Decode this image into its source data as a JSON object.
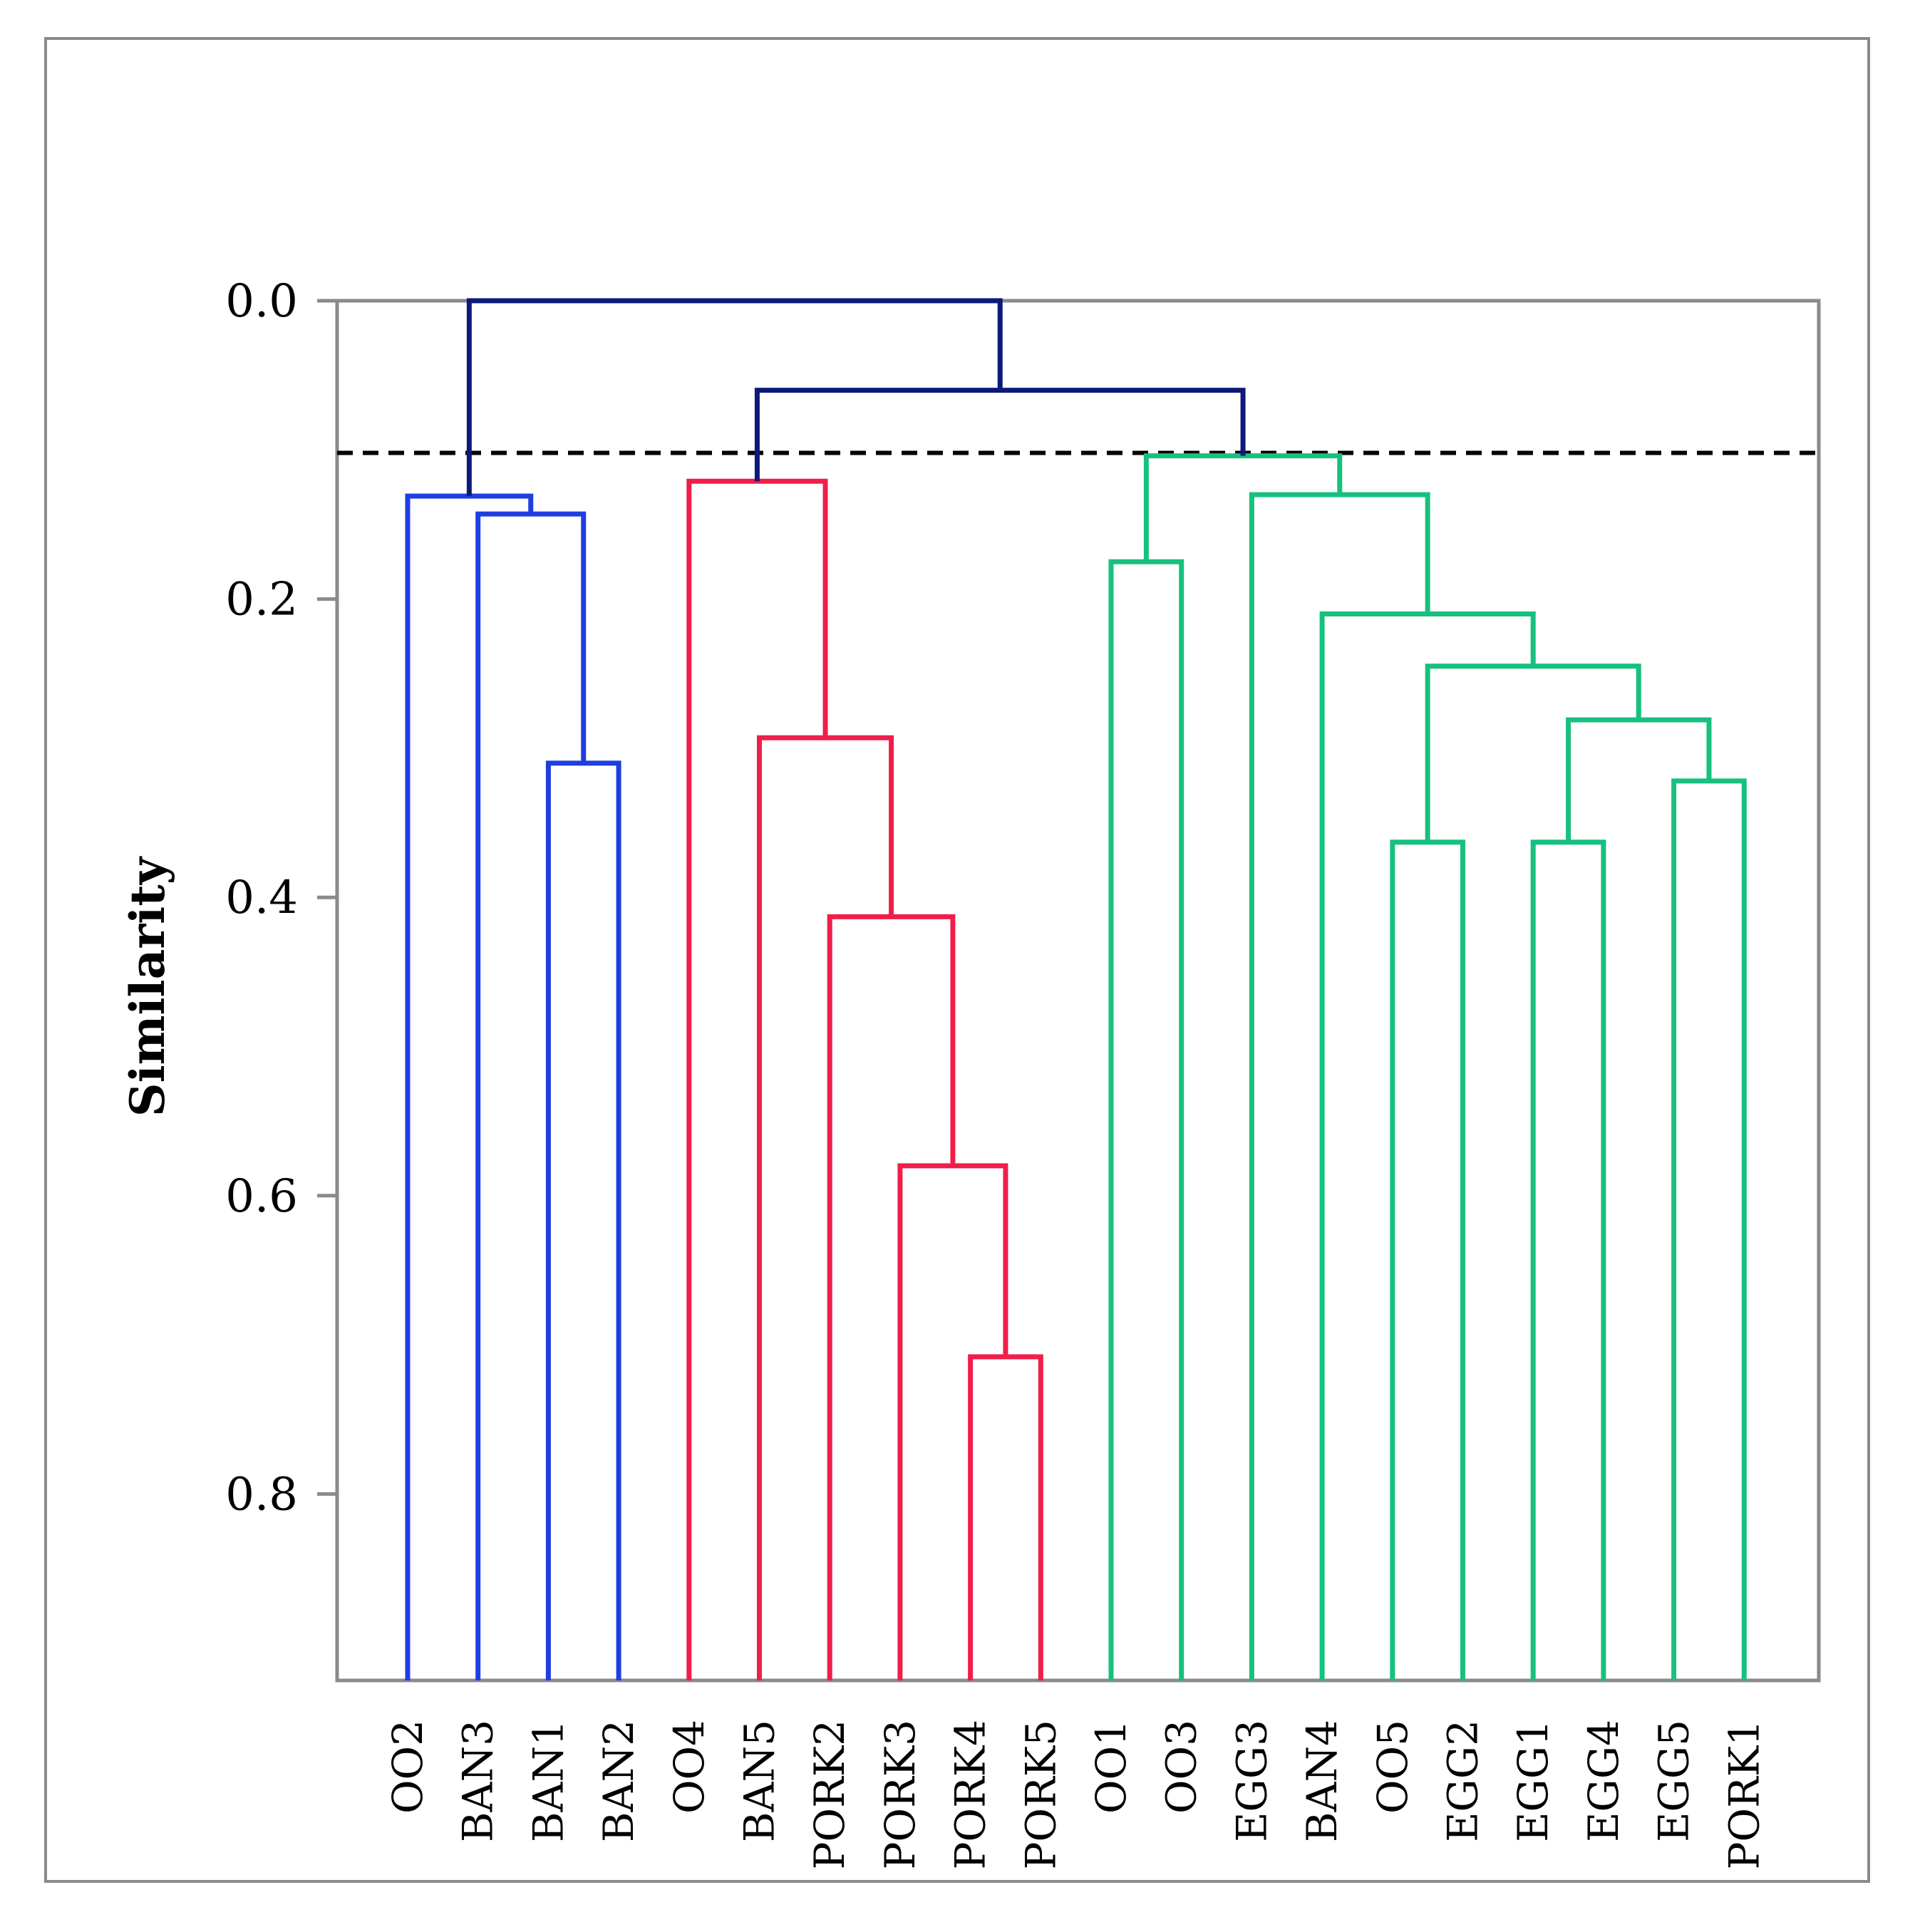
{
  "chart_data": {
    "type": "dendrogram",
    "ylabel": "Similarity",
    "xlabel": "",
    "ylim": [
      0.0,
      0.925
    ],
    "y_ticks": [
      "0.0",
      "0.2",
      "0.4",
      "0.6",
      "0.8"
    ],
    "y_tick_values": [
      0.0,
      0.2,
      0.4,
      0.6,
      0.8
    ],
    "cut_line": 0.102,
    "leaves": [
      "OO2",
      "BAN3",
      "BAN1",
      "BAN2",
      "OO4",
      "BAN5",
      "PORK2",
      "PORK3",
      "PORK4",
      "PORK5",
      "OO1",
      "OO3",
      "EGG3",
      "BAN4",
      "OO5",
      "EGG2",
      "EGG1",
      "EGG4",
      "EGG5",
      "PORK1"
    ],
    "colors": {
      "root": "#0d1a7a",
      "cluster1": "#1f3ee0",
      "cluster2": "#f01e4a",
      "cluster3": "#17c07e",
      "cut_line": "#000000",
      "axis": "#8a8a8a"
    },
    "merges": [
      {
        "a": "BAN1",
        "b": "BAN2",
        "height": 0.31,
        "cluster": "cluster1"
      },
      {
        "a": "BAN3",
        "b": "m1",
        "height": 0.143,
        "cluster": "cluster1"
      },
      {
        "a": "OO2",
        "b": "m2",
        "height": 0.131,
        "cluster": "cluster1"
      },
      {
        "a": "PORK4",
        "b": "PORK5",
        "height": 0.708,
        "cluster": "cluster2"
      },
      {
        "a": "PORK3",
        "b": "m4",
        "height": 0.58,
        "cluster": "cluster2"
      },
      {
        "a": "PORK2",
        "b": "m5",
        "height": 0.413,
        "cluster": "cluster2"
      },
      {
        "a": "BAN5",
        "b": "m6",
        "height": 0.293,
        "cluster": "cluster2"
      },
      {
        "a": "OO4",
        "b": "m7",
        "height": 0.121,
        "cluster": "cluster2"
      },
      {
        "a": "OO1",
        "b": "OO3",
        "height": 0.175,
        "cluster": "cluster3"
      },
      {
        "a": "OO5",
        "b": "EGG2",
        "height": 0.363,
        "cluster": "cluster3"
      },
      {
        "a": "EGG1",
        "b": "EGG4",
        "height": 0.363,
        "cluster": "cluster3"
      },
      {
        "a": "EGG5",
        "b": "PORK1",
        "height": 0.322,
        "cluster": "cluster3"
      },
      {
        "a": "m11",
        "b": "m12",
        "height": 0.281,
        "cluster": "cluster3"
      },
      {
        "a": "m10",
        "b": "m13",
        "height": 0.245,
        "cluster": "cluster3"
      },
      {
        "a": "BAN4",
        "b": "m14",
        "height": 0.21,
        "cluster": "cluster3"
      },
      {
        "a": "EGG3",
        "b": "m15",
        "height": 0.13,
        "cluster": "cluster3"
      },
      {
        "a": "m9",
        "b": "m16",
        "height": 0.104,
        "cluster": "cluster3"
      },
      {
        "a": "m8",
        "b": "m17",
        "height": 0.06,
        "cluster": "root"
      },
      {
        "a": "m3",
        "b": "m18",
        "height": 0.0,
        "cluster": "root"
      }
    ]
  }
}
